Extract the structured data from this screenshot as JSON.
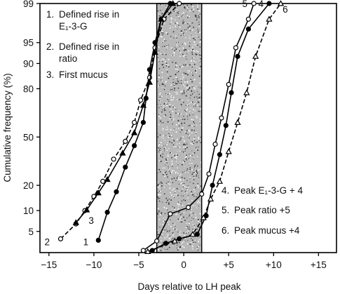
{
  "chart_data": {
    "type": "line",
    "title": "",
    "xlabel": "Days relative to LH peak",
    "ylabel": "Cumulative frequency (%)",
    "xlim": [
      -16,
      17
    ],
    "ylim": [
      2.2,
      99
    ],
    "yscale": "probability",
    "grid": false,
    "x_ticks": [
      {
        "value": -15,
        "label": "−15"
      },
      {
        "value": -10,
        "label": "−10"
      },
      {
        "value": -5,
        "label": "−5"
      },
      {
        "value": 0,
        "label": "0"
      },
      {
        "value": 5,
        "label": "+5"
      },
      {
        "value": 10,
        "label": "+10"
      },
      {
        "value": 15,
        "label": "+15"
      }
    ],
    "y_ticks": [
      {
        "value": 5,
        "label": "5"
      },
      {
        "value": 10,
        "label": "10"
      },
      {
        "value": 20,
        "label": "20"
      },
      {
        "value": 50,
        "label": "50"
      },
      {
        "value": 80,
        "label": "80"
      },
      {
        "value": 90,
        "label": "90"
      },
      {
        "value": 95,
        "label": "95"
      },
      {
        "value": 99,
        "label": "99"
      }
    ],
    "shaded_band": {
      "x_start": -3,
      "x_end": 2
    },
    "legend_top": [
      {
        "num": "1.",
        "text1": "Defined rise in",
        "text2": "E₁-3-G"
      },
      {
        "num": "2.",
        "text1": "Defined rise in",
        "text2": "ratio"
      },
      {
        "num": "3.",
        "text1": "First mucus",
        "text2": ""
      }
    ],
    "legend_bottom": [
      {
        "num": "4.",
        "text": "Peak E₁-3-G + 4"
      },
      {
        "num": "5.",
        "text": "Peak ratio +5"
      },
      {
        "num": "6.",
        "text": "Peak mucus +4"
      }
    ],
    "series": [
      {
        "name": "1",
        "marker": "filled-circle",
        "dash": "solid",
        "points": [
          [
            -9.5,
            3.6
          ],
          [
            -8.5,
            9.5
          ],
          [
            -7.5,
            17
          ],
          [
            -6.5,
            30
          ],
          [
            -5.5,
            44
          ],
          [
            -4.5,
            60
          ],
          [
            -4.2,
            75
          ],
          [
            -3.8,
            88
          ],
          [
            -3.2,
            95
          ],
          [
            -2.5,
            98
          ],
          [
            -1.5,
            99
          ]
        ]
      },
      {
        "name": "2",
        "marker": "open-circle",
        "dash": "dashed",
        "points": [
          [
            -13.7,
            3.8
          ],
          [
            -12,
            6.5
          ],
          [
            -11,
            10
          ],
          [
            -10,
            15
          ],
          [
            -9,
            22
          ],
          [
            -7.8,
            35
          ],
          [
            -6.5,
            47
          ],
          [
            -5.5,
            60
          ],
          [
            -4.8,
            74
          ],
          [
            -3.8,
            85
          ],
          [
            -3.2,
            94
          ],
          [
            -2.2,
            98
          ],
          [
            -0.5,
            99
          ]
        ]
      },
      {
        "name": "3",
        "marker": "filled-triangle",
        "dash": "solid",
        "points": [
          [
            -12,
            6.8
          ],
          [
            -10.8,
            10.2
          ],
          [
            -9.5,
            16.5
          ],
          [
            -8.5,
            23
          ],
          [
            -6.8,
            39
          ],
          [
            -5.5,
            53
          ],
          [
            -4.5,
            71
          ],
          [
            -3.8,
            83
          ],
          [
            -3.2,
            93
          ],
          [
            -2.5,
            98
          ],
          [
            -1.2,
            99
          ]
        ]
      },
      {
        "name": "4",
        "marker": "filled-circle",
        "dash": "solid",
        "points": [
          [
            -3.5,
            2.4
          ],
          [
            -2,
            3.2
          ],
          [
            -0.5,
            3.8
          ],
          [
            1.5,
            4.5
          ],
          [
            2.5,
            8.5
          ],
          [
            3.2,
            20
          ],
          [
            4,
            38
          ],
          [
            4.7,
            58
          ],
          [
            5.3,
            78
          ],
          [
            6,
            92
          ],
          [
            7.2,
            97
          ],
          [
            9.5,
            99
          ]
        ]
      },
      {
        "name": "5",
        "marker": "open-circle",
        "dash": "solid",
        "points": [
          [
            -4.5,
            2.4
          ],
          [
            -3,
            3.5
          ],
          [
            -1.5,
            9
          ],
          [
            0.5,
            11
          ],
          [
            2,
            16
          ],
          [
            2.8,
            26
          ],
          [
            3.5,
            45
          ],
          [
            4.2,
            63
          ],
          [
            5,
            82
          ],
          [
            5.8,
            94
          ],
          [
            7.2,
            98
          ],
          [
            7.8,
            99
          ]
        ]
      },
      {
        "name": "6",
        "marker": "open-triangle",
        "dash": "dashed",
        "points": [
          [
            -4,
            2.3
          ],
          [
            -1,
            3.5
          ],
          [
            1,
            4.5
          ],
          [
            2.2,
            8
          ],
          [
            3,
            14
          ],
          [
            4,
            22
          ],
          [
            5,
            40
          ],
          [
            6,
            60
          ],
          [
            7,
            78
          ],
          [
            8,
            92
          ],
          [
            9.5,
            98
          ],
          [
            10.8,
            99
          ]
        ]
      }
    ],
    "series_labels": [
      {
        "text": "1",
        "x": -10.9,
        "y": 3.4
      },
      {
        "text": "2",
        "x": -15.2,
        "y": 3.4
      },
      {
        "text": "3",
        "x": -10.3,
        "y": 7.3
      },
      {
        "text": "5",
        "x": 6.8,
        "y": 99
      },
      {
        "text": "4",
        "x": 8.6,
        "y": 99
      },
      {
        "text": "6",
        "x": 11.3,
        "y": 98.7
      }
    ]
  }
}
